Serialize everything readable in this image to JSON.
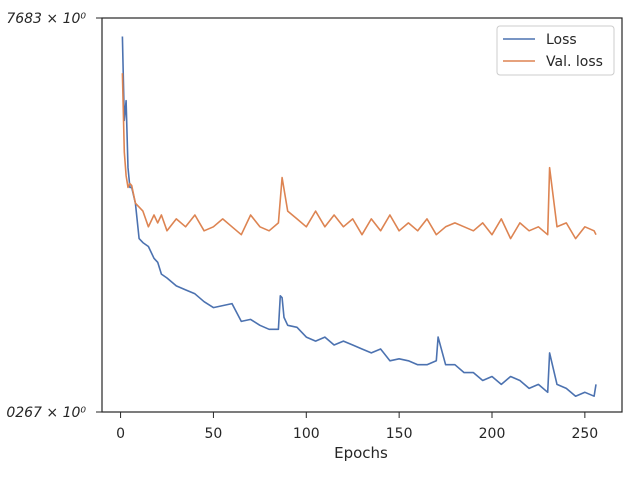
{
  "chart_data": {
    "type": "line",
    "title": "",
    "xlabel": "Epochs",
    "ylabel": "",
    "xlim": [
      -10,
      270
    ],
    "ylim": [
      0,
      1
    ],
    "y_scale": "log",
    "y_tick_labels": [
      "7683 × 10⁰",
      "0267 × 10⁰"
    ],
    "y_tick_values": [
      1,
      0
    ],
    "x_ticks": [
      0,
      50,
      100,
      150,
      200,
      250
    ],
    "grid": false,
    "legend": {
      "placement": "top-right",
      "entries": [
        "Loss",
        "Val. loss"
      ]
    },
    "series": [
      {
        "name": "Loss",
        "color": "#4c72b0",
        "x": [
          1,
          2,
          3,
          4,
          5,
          6,
          8,
          10,
          12,
          15,
          18,
          20,
          22,
          25,
          30,
          35,
          40,
          45,
          50,
          55,
          60,
          65,
          70,
          75,
          80,
          85,
          86,
          87,
          88,
          90,
          95,
          100,
          105,
          110,
          115,
          120,
          125,
          130,
          135,
          140,
          145,
          150,
          155,
          160,
          165,
          170,
          171,
          175,
          180,
          185,
          190,
          195,
          200,
          205,
          210,
          215,
          220,
          225,
          230,
          231,
          235,
          240,
          245,
          250,
          255,
          256
        ],
        "y": [
          0.953,
          0.74,
          0.79,
          0.62,
          0.57,
          0.57,
          0.53,
          0.44,
          0.43,
          0.42,
          0.39,
          0.38,
          0.35,
          0.34,
          0.32,
          0.31,
          0.3,
          0.28,
          0.265,
          0.27,
          0.275,
          0.23,
          0.235,
          0.22,
          0.21,
          0.21,
          0.295,
          0.29,
          0.24,
          0.22,
          0.215,
          0.19,
          0.18,
          0.19,
          0.17,
          0.18,
          0.17,
          0.16,
          0.15,
          0.16,
          0.13,
          0.135,
          0.13,
          0.12,
          0.12,
          0.13,
          0.19,
          0.12,
          0.12,
          0.1,
          0.1,
          0.08,
          0.09,
          0.07,
          0.09,
          0.08,
          0.06,
          0.07,
          0.05,
          0.15,
          0.07,
          0.06,
          0.04,
          0.05,
          0.04,
          0.07
        ]
      },
      {
        "name": "Val. loss",
        "color": "#dd8452",
        "x": [
          1,
          2,
          3,
          4,
          5,
          6,
          8,
          10,
          12,
          15,
          18,
          20,
          22,
          25,
          30,
          35,
          40,
          45,
          50,
          55,
          60,
          65,
          70,
          75,
          80,
          85,
          87,
          90,
          95,
          100,
          105,
          110,
          115,
          120,
          125,
          130,
          135,
          140,
          145,
          150,
          155,
          160,
          165,
          170,
          175,
          180,
          185,
          190,
          195,
          200,
          205,
          210,
          215,
          220,
          225,
          230,
          231,
          235,
          240,
          245,
          250,
          255,
          256
        ],
        "y": [
          0.86,
          0.66,
          0.6,
          0.57,
          0.58,
          0.575,
          0.53,
          0.52,
          0.51,
          0.47,
          0.5,
          0.48,
          0.5,
          0.46,
          0.49,
          0.47,
          0.5,
          0.46,
          0.47,
          0.49,
          0.47,
          0.45,
          0.5,
          0.47,
          0.46,
          0.48,
          0.595,
          0.51,
          0.49,
          0.47,
          0.51,
          0.47,
          0.5,
          0.47,
          0.49,
          0.45,
          0.49,
          0.46,
          0.5,
          0.46,
          0.48,
          0.46,
          0.49,
          0.45,
          0.47,
          0.48,
          0.47,
          0.46,
          0.48,
          0.45,
          0.49,
          0.44,
          0.48,
          0.46,
          0.47,
          0.45,
          0.62,
          0.47,
          0.48,
          0.44,
          0.47,
          0.46,
          0.45
        ]
      }
    ]
  }
}
